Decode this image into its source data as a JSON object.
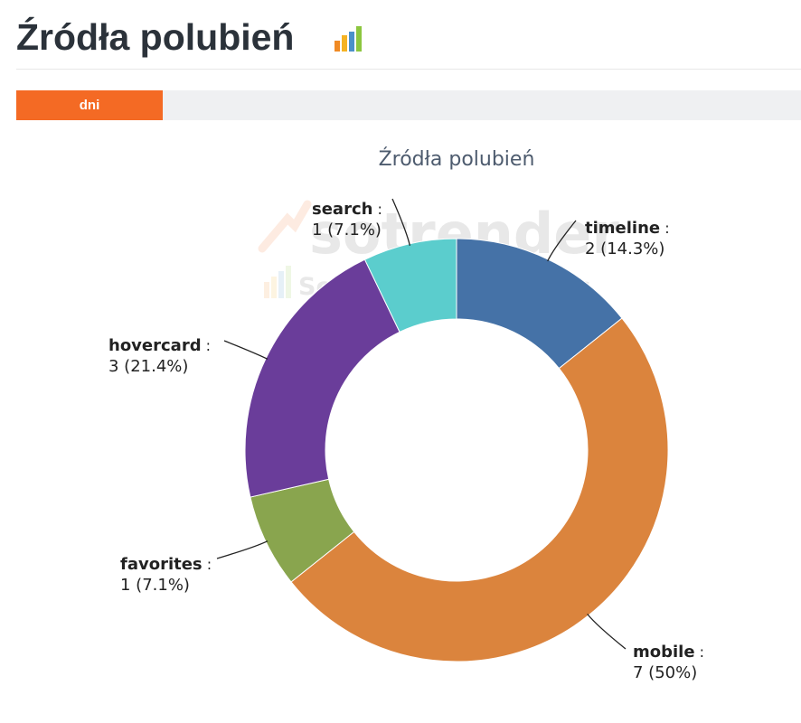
{
  "header": {
    "title": "Źródła polubień",
    "icon": "bar-chart-icon"
  },
  "tabs": [
    {
      "label": "dni",
      "active": true
    }
  ],
  "chart_data": {
    "type": "pie",
    "donut": true,
    "title": "Źródła polubień",
    "slices": [
      {
        "name": "timeline",
        "value": 2,
        "percent": "14.3%",
        "color": "#4572a7",
        "label_value": "2 (14.3%)"
      },
      {
        "name": "mobile",
        "value": 7,
        "percent": "50%",
        "color": "#db843d",
        "label_value": "7 (50%)"
      },
      {
        "name": "favorites",
        "value": 1,
        "percent": "7.1%",
        "color": "#89a54e",
        "label_value": "1 (7.1%)"
      },
      {
        "name": "hovercard",
        "value": 3,
        "percent": "21.4%",
        "color": "#6a3d9a",
        "label_value": "3 (21.4%)"
      },
      {
        "name": "search",
        "value": 1,
        "percent": "7.1%",
        "color": "#5bcdcd",
        "label_value": "1 (7.1%)"
      }
    ],
    "watermark": {
      "brand": "sotrender",
      "tagline": "Social Media Insights"
    }
  }
}
